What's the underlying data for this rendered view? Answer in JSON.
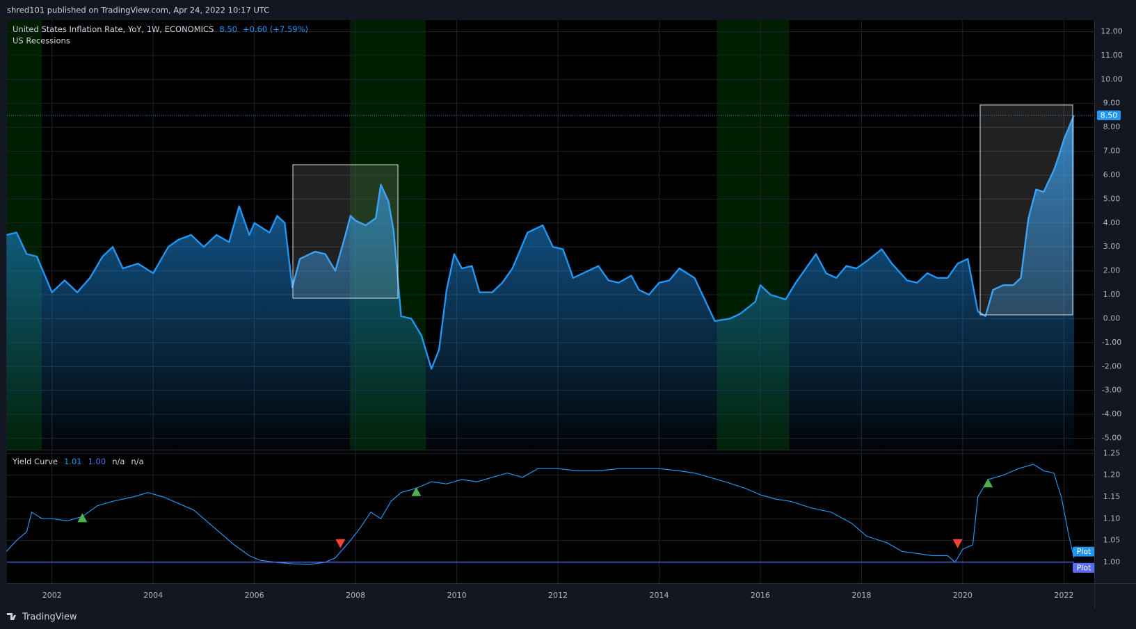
{
  "header": "shred101 published on TradingView.com, Apr 24, 2022 10:17 UTC",
  "footer": "TradingView",
  "chart_data": [
    {
      "type": "area",
      "series": [
        {
          "name": "United States Inflation Rate, YoY, 1W, ECONOMICS",
          "color": "#2196f3",
          "x": [
            2001.1,
            2001.3,
            2001.5,
            2001.7,
            2001.9,
            2002.0,
            2002.25,
            2002.5,
            2002.75,
            2003.0,
            2003.2,
            2003.4,
            2003.7,
            2004.0,
            2004.3,
            2004.5,
            2004.75,
            2005.0,
            2005.25,
            2005.5,
            2005.7,
            2005.9,
            2006.0,
            2006.3,
            2006.45,
            2006.6,
            2006.75,
            2006.9,
            2007.2,
            2007.4,
            2007.6,
            2007.8,
            2007.9,
            2008.0,
            2008.2,
            2008.4,
            2008.5,
            2008.65,
            2008.75,
            2008.9,
            2009.1,
            2009.3,
            2009.5,
            2009.65,
            2009.8,
            2009.95,
            2010.1,
            2010.3,
            2010.45,
            2010.7,
            2010.9,
            2011.1,
            2011.4,
            2011.7,
            2011.9,
            2012.1,
            2012.3,
            2012.6,
            2012.8,
            2013.0,
            2013.2,
            2013.45,
            2013.6,
            2013.8,
            2014.0,
            2014.2,
            2014.4,
            2014.7,
            2014.9,
            2015.1,
            2015.4,
            2015.6,
            2015.9,
            2016.0,
            2016.2,
            2016.5,
            2016.7,
            2016.9,
            2017.1,
            2017.3,
            2017.5,
            2017.7,
            2017.9,
            2018.1,
            2018.4,
            2018.6,
            2018.9,
            2019.1,
            2019.3,
            2019.5,
            2019.7,
            2019.9,
            2020.1,
            2020.3,
            2020.45,
            2020.6,
            2020.8,
            2021.0,
            2021.15,
            2021.3,
            2021.45,
            2021.6,
            2021.8,
            2021.9,
            2022.0,
            2022.2
          ],
          "values": [
            3.5,
            3.6,
            2.7,
            2.6,
            1.6,
            1.1,
            1.6,
            1.1,
            1.7,
            2.6,
            3.0,
            2.1,
            2.3,
            1.9,
            3.0,
            3.3,
            3.5,
            3.0,
            3.5,
            3.2,
            4.7,
            3.5,
            4.0,
            3.6,
            4.3,
            4.0,
            1.3,
            2.5,
            2.8,
            2.7,
            2.0,
            3.5,
            4.3,
            4.1,
            3.9,
            4.2,
            5.6,
            4.9,
            3.7,
            0.1,
            0.0,
            -0.7,
            -2.1,
            -1.3,
            1.2,
            2.7,
            2.1,
            2.2,
            1.1,
            1.1,
            1.5,
            2.1,
            3.6,
            3.9,
            3.0,
            2.9,
            1.7,
            2.0,
            2.2,
            1.6,
            1.5,
            1.8,
            1.2,
            1.0,
            1.5,
            1.6,
            2.1,
            1.7,
            0.8,
            -0.1,
            0.0,
            0.2,
            0.7,
            1.4,
            1.0,
            0.8,
            1.5,
            2.1,
            2.7,
            1.9,
            1.7,
            2.2,
            2.1,
            2.4,
            2.9,
            2.3,
            1.6,
            1.5,
            1.9,
            1.7,
            1.7,
            2.3,
            2.5,
            0.3,
            0.1,
            1.2,
            1.4,
            1.4,
            1.7,
            4.2,
            5.4,
            5.3,
            6.2,
            6.8,
            7.5,
            8.5
          ]
        }
      ],
      "last_label": "8.50",
      "change_label": "+0.60 (+7.59%)",
      "recessions": {
        "name": "US Recessions",
        "color": "rgba(0,110,0,0.28)",
        "spans": [
          [
            2001.11,
            2001.8
          ],
          [
            2007.89,
            2009.39
          ],
          [
            2015.14,
            2016.57
          ]
        ]
      },
      "xlim": [
        2001.11,
        2022.6
      ],
      "ylim": [
        -5.48,
        12.48
      ],
      "yticks": [
        {
          "value": 12,
          "label": "12.00"
        },
        {
          "value": 11,
          "label": "11.00"
        },
        {
          "value": 10,
          "label": "10.00"
        },
        {
          "value": 9,
          "label": "9.00"
        },
        {
          "value": 8,
          "label": "8.00"
        },
        {
          "value": 7,
          "label": "7.00"
        },
        {
          "value": 6,
          "label": "6.00"
        },
        {
          "value": 5,
          "label": "5.00"
        },
        {
          "value": 4,
          "label": "4.00"
        },
        {
          "value": 3,
          "label": "3.00"
        },
        {
          "value": 2,
          "label": "2.00"
        },
        {
          "value": 1,
          "label": "1.00"
        },
        {
          "value": 0,
          "label": "0.00"
        },
        {
          "value": -1,
          "label": "-1.00"
        },
        {
          "value": -2,
          "label": "-2.00"
        },
        {
          "value": -3,
          "label": "-3.00"
        },
        {
          "value": -4,
          "label": "-4.00"
        },
        {
          "value": -5,
          "label": "-5.00"
        }
      ],
      "grid": true
    },
    {
      "type": "line",
      "title": "Yield Curve",
      "series": [
        {
          "name": "Plot",
          "color": "#2196f3",
          "x": [
            2001.1,
            2001.3,
            2001.5,
            2001.6,
            2001.8,
            2002.0,
            2002.3,
            2002.6,
            2002.9,
            2003.2,
            2003.6,
            2003.9,
            2004.2,
            2004.5,
            2004.8,
            2005.2,
            2005.6,
            2005.9,
            2006.1,
            2006.4,
            2006.8,
            2007.1,
            2007.4,
            2007.6,
            2007.9,
            2008.1,
            2008.3,
            2008.5,
            2008.7,
            2008.9,
            2009.2,
            2009.5,
            2009.8,
            2010.1,
            2010.4,
            2010.7,
            2011.0,
            2011.3,
            2011.6,
            2012.0,
            2012.4,
            2012.8,
            2013.2,
            2013.6,
            2014.0,
            2014.4,
            2014.7,
            2015.0,
            2015.3,
            2015.7,
            2016.0,
            2016.3,
            2016.6,
            2017.0,
            2017.4,
            2017.8,
            2018.1,
            2018.5,
            2018.8,
            2019.1,
            2019.4,
            2019.7,
            2019.85,
            2020.0,
            2020.2,
            2020.3,
            2020.5,
            2020.8,
            2021.1,
            2021.4,
            2021.6,
            2021.8,
            2021.95,
            2022.1,
            2022.2
          ],
          "values": [
            1.025,
            1.05,
            1.07,
            1.115,
            1.1,
            1.1,
            1.095,
            1.105,
            1.13,
            1.14,
            1.15,
            1.16,
            1.15,
            1.135,
            1.12,
            1.08,
            1.04,
            1.015,
            1.005,
            1.0,
            0.996,
            0.995,
            1.0,
            1.01,
            1.05,
            1.08,
            1.115,
            1.1,
            1.14,
            1.16,
            1.17,
            1.185,
            1.18,
            1.19,
            1.185,
            1.195,
            1.205,
            1.195,
            1.215,
            1.215,
            1.21,
            1.21,
            1.215,
            1.215,
            1.215,
            1.21,
            1.205,
            1.195,
            1.185,
            1.17,
            1.155,
            1.145,
            1.14,
            1.125,
            1.115,
            1.09,
            1.06,
            1.045,
            1.025,
            1.02,
            1.015,
            1.015,
            1.0,
            1.03,
            1.04,
            1.15,
            1.19,
            1.2,
            1.215,
            1.225,
            1.21,
            1.205,
            1.15,
            1.06,
            1.01
          ]
        },
        {
          "name": "Plot",
          "color": "#5b6cf0",
          "x": [
            2001.11,
            2022.2
          ],
          "values": [
            1.0,
            1.0
          ]
        }
      ],
      "last_labels": [
        "1.01",
        "1.00",
        "n/a",
        "n/a"
      ],
      "up_signals": {
        "color": "#4caf50",
        "x": [
          2002.6,
          2009.2,
          2020.5
        ],
        "values": [
          1.1,
          1.16,
          1.18
        ]
      },
      "down_signals": {
        "color": "#f44336",
        "x": [
          2007.7,
          2019.9
        ],
        "values": [
          1.045,
          1.045
        ]
      },
      "xlim": [
        2001.11,
        2022.6
      ],
      "ylim": [
        0.952,
        1.257
      ],
      "yticks": [
        {
          "value": 1.25,
          "label": "1.25"
        },
        {
          "value": 1.2,
          "label": "1.20"
        },
        {
          "value": 1.15,
          "label": "1.15"
        },
        {
          "value": 1.1,
          "label": "1.10"
        },
        {
          "value": 1.05,
          "label": "1.05"
        },
        {
          "value": 1.0,
          "label": "1.00"
        }
      ],
      "xticks": [
        2002,
        2004,
        2006,
        2008,
        2010,
        2012,
        2014,
        2016,
        2018,
        2020,
        2022
      ],
      "grid": true
    }
  ]
}
